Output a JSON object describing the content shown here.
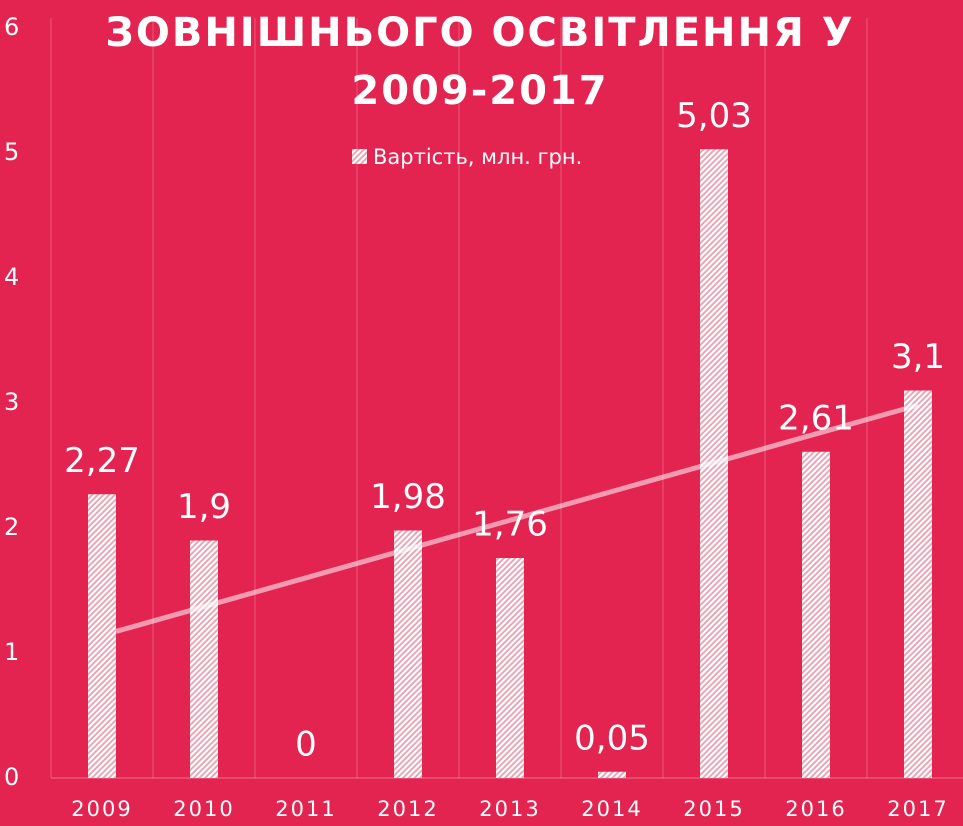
{
  "chart_data": {
    "type": "bar",
    "title": "ЗОВНІШНЬОГО ОСВІТЛЕННЯ У 2009-2017",
    "categories": [
      "2009",
      "2010",
      "2011",
      "2012",
      "2013",
      "2014",
      "2015",
      "2016",
      "2017"
    ],
    "series": [
      {
        "name": "Вартість, млн. грн.",
        "color": "#ffffff",
        "values": [
          2.27,
          1.9,
          0,
          1.98,
          1.76,
          0.05,
          5.03,
          2.61,
          3.1
        ],
        "value_labels": [
          "2,27",
          "1,9",
          "0",
          "1,98",
          "1,76",
          "0,05",
          "5,03",
          "2,61",
          "3,1"
        ]
      }
    ],
    "ylim": [
      0,
      6
    ],
    "yticks": [
      0,
      1,
      2,
      3,
      4,
      5,
      6
    ],
    "grid": true,
    "trendline": "linear",
    "legend": "top"
  }
}
